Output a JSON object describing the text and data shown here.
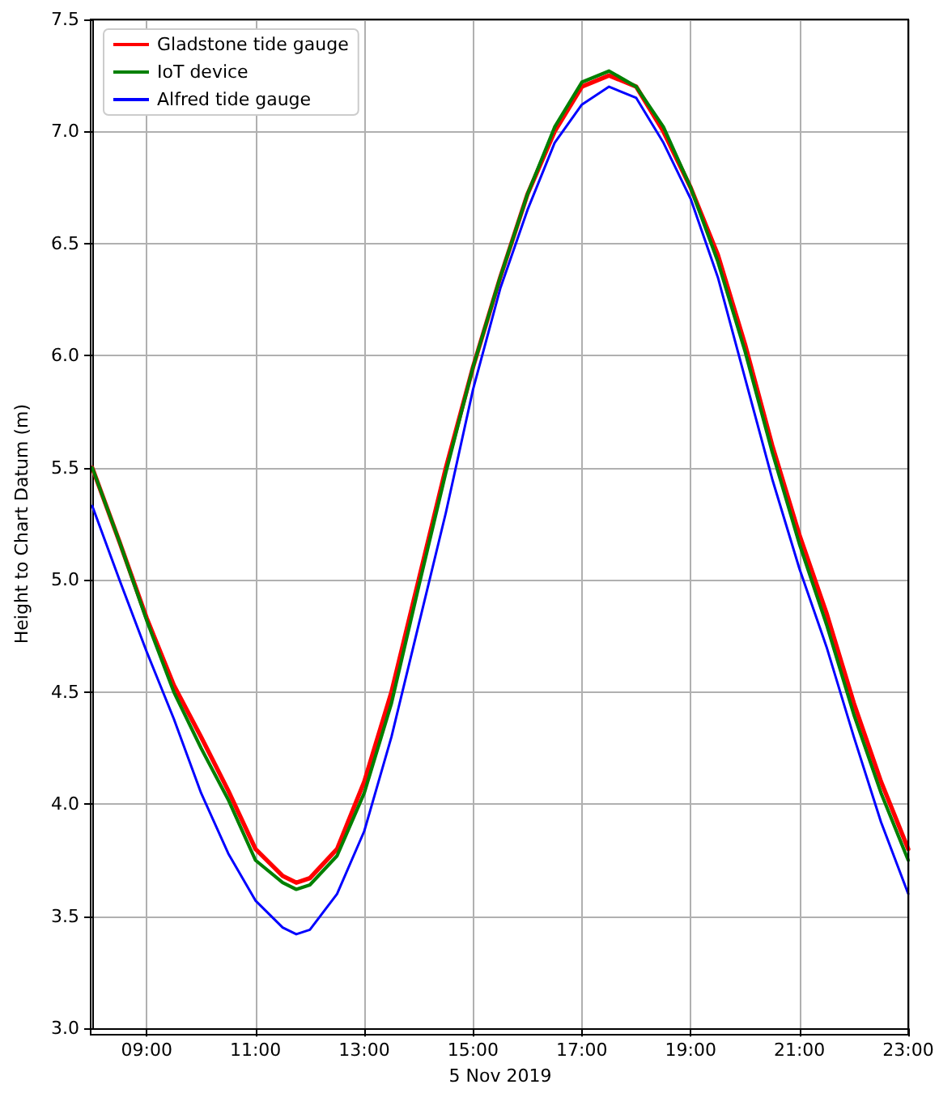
{
  "chart_data": {
    "type": "line",
    "xlabel": "5 Nov 2019",
    "ylabel": "Height to Chart Datum (m)",
    "x": [
      8,
      8.5,
      9,
      9.5,
      10,
      10.5,
      11,
      11.5,
      11.75,
      12,
      12.5,
      13,
      13.5,
      14,
      14.5,
      15,
      15.5,
      16,
      16.5,
      17,
      17.5,
      18,
      18.5,
      19,
      19.5,
      20,
      20.5,
      21,
      21.5,
      22,
      22.5,
      23
    ],
    "series": [
      {
        "name": "Gladstone tide gauge",
        "color": "#ff0000",
        "values": [
          5.5,
          5.17,
          4.83,
          4.53,
          4.3,
          4.06,
          3.8,
          3.68,
          3.65,
          3.67,
          3.8,
          4.1,
          4.5,
          5.0,
          5.5,
          5.95,
          6.35,
          6.72,
          7.0,
          7.2,
          7.25,
          7.2,
          7.0,
          6.75,
          6.45,
          6.05,
          5.6,
          5.2,
          4.85,
          4.45,
          4.1,
          3.8
        ]
      },
      {
        "name": "IoT device",
        "color": "#008000",
        "values": [
          5.5,
          5.17,
          4.82,
          4.5,
          4.25,
          4.02,
          3.75,
          3.65,
          3.62,
          3.64,
          3.77,
          4.05,
          4.45,
          4.97,
          5.48,
          5.95,
          6.35,
          6.72,
          7.02,
          7.22,
          7.27,
          7.2,
          7.02,
          6.75,
          6.42,
          6.02,
          5.57,
          5.16,
          4.8,
          4.4,
          4.05,
          3.75
        ]
      },
      {
        "name": "Alfred tide gauge",
        "color": "#0000ff",
        "values": [
          5.33,
          5.0,
          4.68,
          4.38,
          4.05,
          3.78,
          3.57,
          3.45,
          3.42,
          3.44,
          3.6,
          3.88,
          4.3,
          4.8,
          5.3,
          5.85,
          6.3,
          6.65,
          6.95,
          7.12,
          7.2,
          7.15,
          6.95,
          6.7,
          6.35,
          5.9,
          5.45,
          5.05,
          4.7,
          4.3,
          3.92,
          3.6
        ]
      }
    ],
    "xlim": [
      8,
      23
    ],
    "xticks": [
      {
        "value": 9,
        "label": "09:00"
      },
      {
        "value": 11,
        "label": "11:00"
      },
      {
        "value": 13,
        "label": "13:00"
      },
      {
        "value": 15,
        "label": "15:00"
      },
      {
        "value": 17,
        "label": "17:00"
      },
      {
        "value": 19,
        "label": "19:00"
      },
      {
        "value": 21,
        "label": "21:00"
      },
      {
        "value": 23,
        "label": "23:00"
      }
    ],
    "ylim": [
      3,
      7.5
    ],
    "yticks": [
      {
        "value": 3,
        "label": "3.0"
      },
      {
        "value": 3.5,
        "label": "3.5"
      },
      {
        "value": 4,
        "label": "4.0"
      },
      {
        "value": 4.5,
        "label": "4.5"
      },
      {
        "value": 5,
        "label": "5.0"
      },
      {
        "value": 5.5,
        "label": "5.5"
      },
      {
        "value": 6,
        "label": "6.0"
      },
      {
        "value": 6.5,
        "label": "6.5"
      },
      {
        "value": 7,
        "label": "7.0"
      },
      {
        "value": 7.5,
        "label": "7.5"
      }
    ],
    "grid": true,
    "legend": "top left",
    "marker": "none",
    "line_style": "solid"
  }
}
